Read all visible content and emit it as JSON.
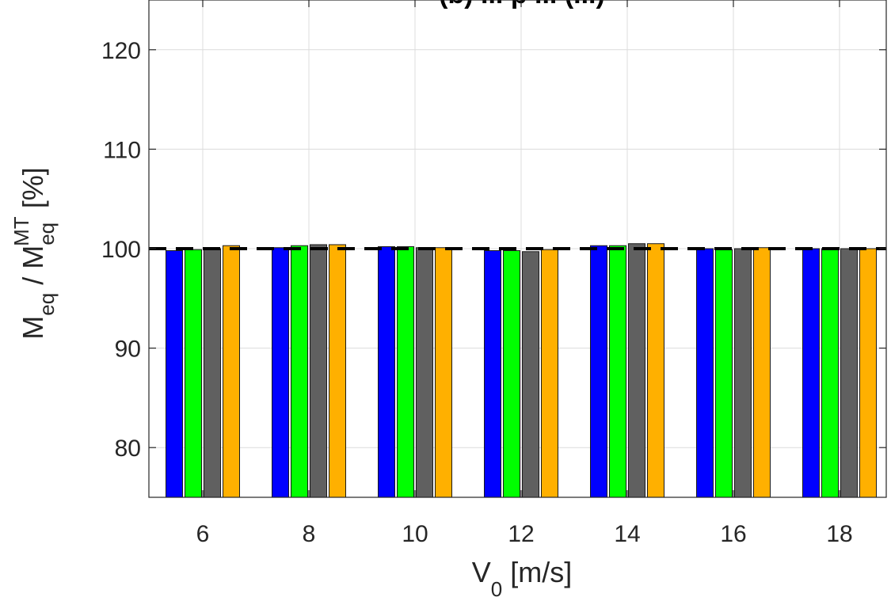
{
  "chart_data": {
    "type": "bar",
    "title": "(b) ... p ... (...)",
    "xlabel": {
      "main": "V",
      "sub": "0",
      "rest": " [m/s]"
    },
    "ylabel": {
      "m1": "M",
      "sub1": "eq",
      "mid": " / M",
      "sub2": "eq",
      "sup2": "MT",
      "rest": " [%]"
    },
    "categories": [
      "6",
      "8",
      "10",
      "12",
      "14",
      "16",
      "18"
    ],
    "ylim": [
      75,
      125
    ],
    "yticks": [
      "80",
      "90",
      "100",
      "110",
      "120"
    ],
    "grid": true,
    "reference_line": 100,
    "series": [
      {
        "color": "#0000ff",
        "values": [
          99.8,
          100.1,
          100.2,
          99.8,
          100.3,
          100.0,
          100.0
        ]
      },
      {
        "color": "#00ff00",
        "values": [
          99.9,
          100.3,
          100.2,
          99.8,
          100.3,
          99.9,
          100.0
        ]
      },
      {
        "color": "#606060",
        "values": [
          100.0,
          100.4,
          100.1,
          99.7,
          100.5,
          100.0,
          100.0
        ]
      },
      {
        "color": "#ffb000",
        "values": [
          100.3,
          100.4,
          100.1,
          99.9,
          100.5,
          100.1,
          100.0
        ]
      }
    ]
  }
}
